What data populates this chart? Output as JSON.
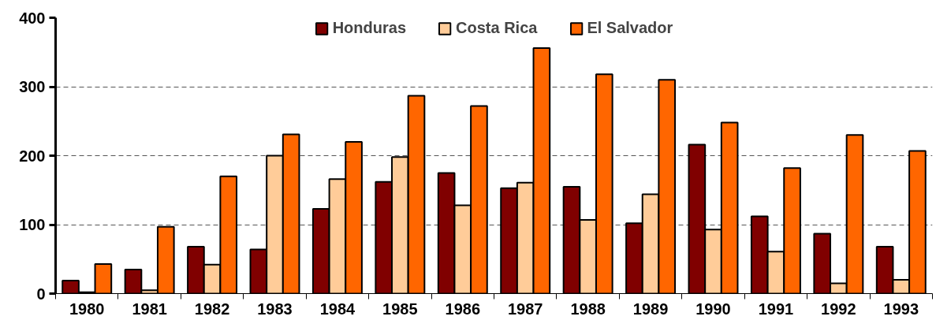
{
  "chart_data": {
    "type": "bar",
    "categories": [
      "1980",
      "1981",
      "1982",
      "1983",
      "1984",
      "1985",
      "1986",
      "1987",
      "1988",
      "1989",
      "1990",
      "1991",
      "1992",
      "1993"
    ],
    "series": [
      {
        "name": "Honduras",
        "color": "#800000",
        "values": [
          19,
          35,
          68,
          64,
          123,
          162,
          175,
          153,
          155,
          102,
          216,
          112,
          87,
          68
        ]
      },
      {
        "name": "Costa Rica",
        "color": "#ffcc99",
        "values": [
          2,
          5,
          42,
          200,
          166,
          198,
          128,
          161,
          107,
          144,
          93,
          61,
          15,
          20
        ]
      },
      {
        "name": "El Salvador",
        "color": "#ff6600",
        "values": [
          43,
          97,
          170,
          231,
          220,
          287,
          272,
          356,
          318,
          310,
          248,
          182,
          230,
          207
        ]
      }
    ],
    "ylim": [
      0,
      400
    ],
    "yticks": [
      0,
      100,
      200,
      300,
      400
    ],
    "grid": "y",
    "legend": "top"
  }
}
